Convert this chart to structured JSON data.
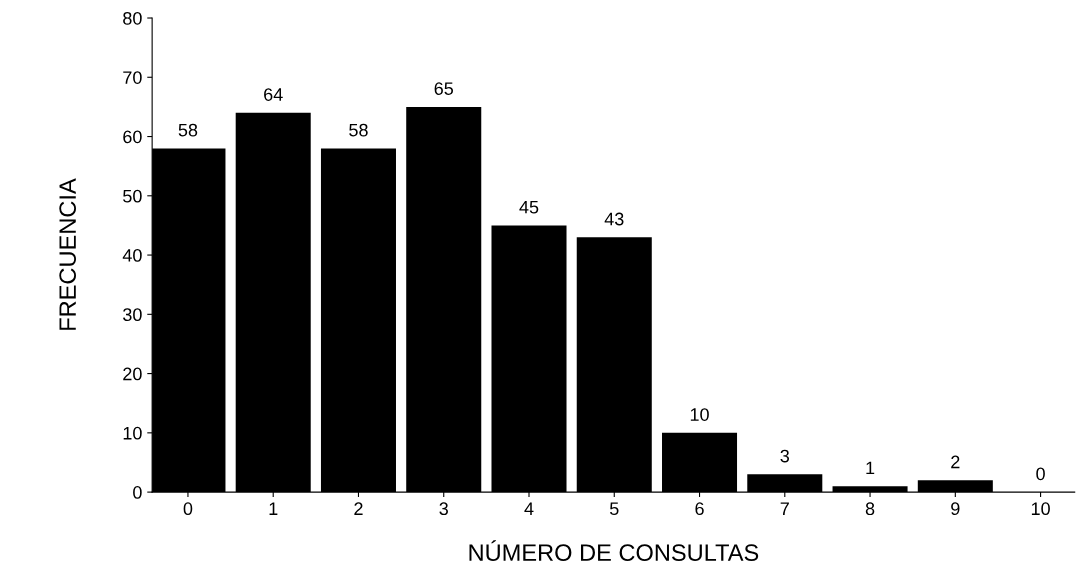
{
  "chart_data": {
    "type": "bar",
    "xlabel": "NÚMERO DE CONSULTAS",
    "ylabel": "FRECUENCIA",
    "categories": [
      "0",
      "1",
      "2",
      "3",
      "4",
      "5",
      "6",
      "7",
      "8",
      "9",
      "10"
    ],
    "values": [
      58,
      64,
      58,
      65,
      45,
      43,
      10,
      3,
      1,
      2,
      0
    ],
    "color": "#000000",
    "ylim": [
      0,
      80
    ],
    "yticks": [
      0,
      10,
      20,
      30,
      40,
      50,
      60,
      70,
      80
    ],
    "grid": false,
    "legend": false,
    "data_labels": true
  }
}
